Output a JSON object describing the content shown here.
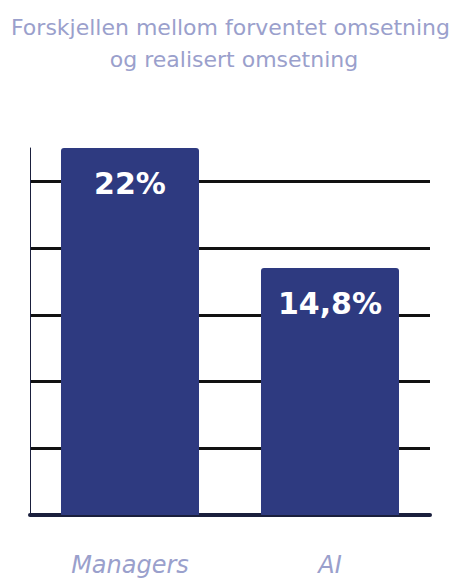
{
  "chart_data": {
    "type": "bar",
    "title": "Forskjellen mellom forventet omsetning og realisert omsetning",
    "categories": [
      "Managers",
      "AI"
    ],
    "values": [
      22,
      14.8
    ],
    "value_labels": [
      "22%",
      "14,8%"
    ],
    "color": "#2e3a80",
    "ylim": [
      0,
      22
    ],
    "yticks": [
      0,
      4,
      8,
      12,
      16,
      20
    ],
    "grid": true,
    "data_labels": true,
    "tick_labels": "x"
  }
}
